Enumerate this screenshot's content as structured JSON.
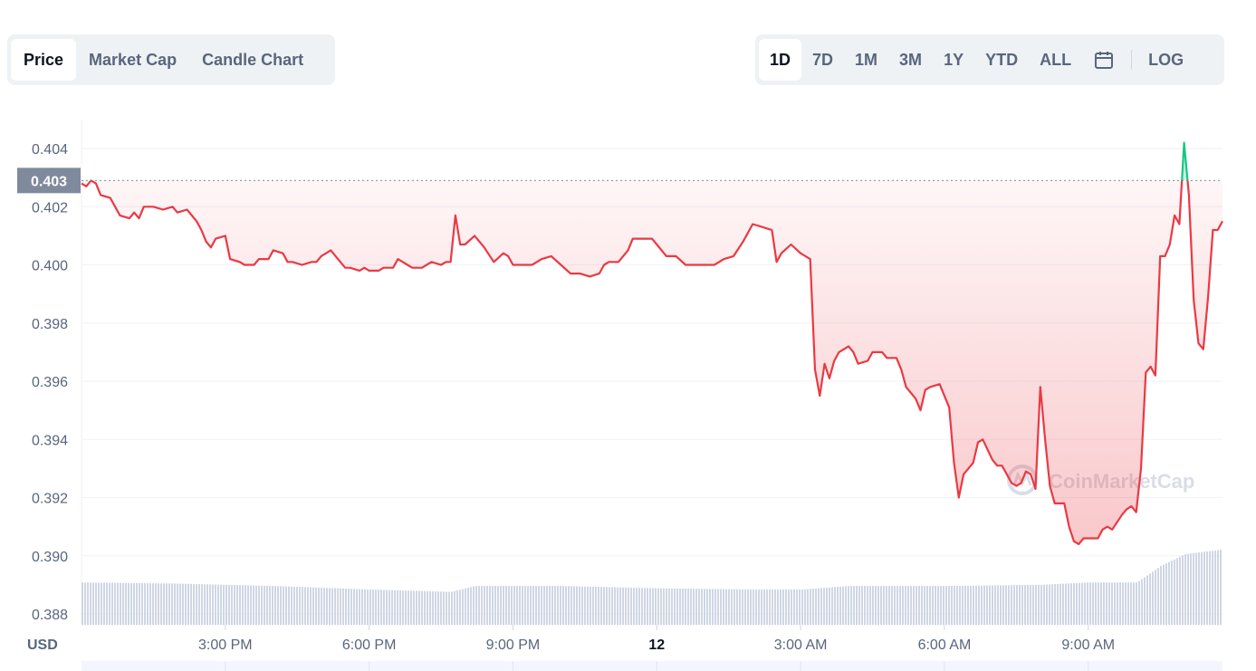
{
  "tabs": {
    "items": [
      "Price",
      "Market Cap",
      "Candle Chart"
    ],
    "active": "Price"
  },
  "ranges": {
    "items": [
      "1D",
      "7D",
      "1M",
      "3M",
      "1Y",
      "YTD",
      "ALL"
    ],
    "active": "1D",
    "calendar_icon": "calendar-icon",
    "log_label": "LOG"
  },
  "watermark": "CoinMarketCap",
  "colors": {
    "down": "#ea3943",
    "up": "#16c784",
    "volume": "#cfd6e4",
    "grid": "#eff2f5",
    "label_bg": "#808a9d"
  },
  "chart_data": {
    "type": "line",
    "unit_label": "USD",
    "current_price_label": "0.403",
    "ylim": [
      0.3875,
      0.405
    ],
    "yticks": [
      "0.404",
      "0.402",
      "0.400",
      "0.398",
      "0.396",
      "0.394",
      "0.392",
      "0.390",
      "0.388"
    ],
    "ytick_values": [
      0.404,
      0.402,
      0.4,
      0.398,
      0.396,
      0.394,
      0.392,
      0.39,
      0.388
    ],
    "x_range_hours": [
      12.0,
      35.8
    ],
    "xticks": [
      {
        "label": "3:00 PM",
        "hour": 15,
        "bold": false
      },
      {
        "label": "6:00 PM",
        "hour": 18,
        "bold": false
      },
      {
        "label": "9:00 PM",
        "hour": 21,
        "bold": false
      },
      {
        "label": "12",
        "hour": 24,
        "bold": true
      },
      {
        "label": "3:00 AM",
        "hour": 27,
        "bold": false
      },
      {
        "label": "6:00 AM",
        "hour": 30,
        "bold": false
      },
      {
        "label": "9:00 AM",
        "hour": 33,
        "bold": false
      }
    ],
    "baseline": 0.4029,
    "grid": true,
    "legend": "none",
    "series": [
      {
        "values": [
          [
            12.0,
            0.4028
          ],
          [
            12.1,
            0.4027
          ],
          [
            12.2,
            0.4029
          ],
          [
            12.3,
            0.4028
          ],
          [
            12.4,
            0.4024
          ],
          [
            12.6,
            0.4023
          ],
          [
            12.7,
            0.402
          ],
          [
            12.8,
            0.4017
          ],
          [
            13.0,
            0.4016
          ],
          [
            13.1,
            0.4018
          ],
          [
            13.2,
            0.4016
          ],
          [
            13.3,
            0.402
          ],
          [
            13.5,
            0.402
          ],
          [
            13.7,
            0.4019
          ],
          [
            13.9,
            0.402
          ],
          [
            14.0,
            0.4018
          ],
          [
            14.2,
            0.4019
          ],
          [
            14.4,
            0.4015
          ],
          [
            14.5,
            0.4012
          ],
          [
            14.6,
            0.4008
          ],
          [
            14.7,
            0.4006
          ],
          [
            14.8,
            0.4009
          ],
          [
            15.0,
            0.401
          ],
          [
            15.1,
            0.4002
          ],
          [
            15.3,
            0.4001
          ],
          [
            15.4,
            0.4
          ],
          [
            15.6,
            0.4
          ],
          [
            15.7,
            0.4002
          ],
          [
            15.9,
            0.4002
          ],
          [
            16.0,
            0.4005
          ],
          [
            16.2,
            0.4004
          ],
          [
            16.3,
            0.4001
          ],
          [
            16.4,
            0.4001
          ],
          [
            16.6,
            0.4
          ],
          [
            16.8,
            0.4001
          ],
          [
            16.9,
            0.4001
          ],
          [
            17.0,
            0.4003
          ],
          [
            17.2,
            0.4005
          ],
          [
            17.3,
            0.4003
          ],
          [
            17.5,
            0.3999
          ],
          [
            17.6,
            0.3999
          ],
          [
            17.8,
            0.3998
          ],
          [
            17.9,
            0.3999
          ],
          [
            18.0,
            0.3998
          ],
          [
            18.2,
            0.3998
          ],
          [
            18.3,
            0.3999
          ],
          [
            18.5,
            0.3999
          ],
          [
            18.6,
            0.4002
          ],
          [
            18.8,
            0.4
          ],
          [
            18.9,
            0.3999
          ],
          [
            19.1,
            0.3999
          ],
          [
            19.2,
            0.4
          ],
          [
            19.3,
            0.4001
          ],
          [
            19.5,
            0.4
          ],
          [
            19.6,
            0.4001
          ],
          [
            19.7,
            0.4001
          ],
          [
            19.8,
            0.4017
          ],
          [
            19.9,
            0.4007
          ],
          [
            20.0,
            0.4007
          ],
          [
            20.2,
            0.401
          ],
          [
            20.4,
            0.4006
          ],
          [
            20.6,
            0.4001
          ],
          [
            20.8,
            0.4004
          ],
          [
            20.9,
            0.4003
          ],
          [
            21.0,
            0.4
          ],
          [
            21.2,
            0.4
          ],
          [
            21.4,
            0.4
          ],
          [
            21.6,
            0.4002
          ],
          [
            21.8,
            0.4003
          ],
          [
            22.0,
            0.4
          ],
          [
            22.2,
            0.3997
          ],
          [
            22.4,
            0.3997
          ],
          [
            22.6,
            0.3996
          ],
          [
            22.8,
            0.3997
          ],
          [
            22.9,
            0.4
          ],
          [
            23.0,
            0.4001
          ],
          [
            23.2,
            0.4001
          ],
          [
            23.4,
            0.4005
          ],
          [
            23.5,
            0.4009
          ],
          [
            23.7,
            0.4009
          ],
          [
            23.9,
            0.4009
          ],
          [
            24.0,
            0.4007
          ],
          [
            24.2,
            0.4003
          ],
          [
            24.4,
            0.4003
          ],
          [
            24.6,
            0.4
          ],
          [
            24.8,
            0.4
          ],
          [
            25.0,
            0.4
          ],
          [
            25.2,
            0.4
          ],
          [
            25.4,
            0.4002
          ],
          [
            25.6,
            0.4003
          ],
          [
            25.8,
            0.4008
          ],
          [
            26.0,
            0.4014
          ],
          [
            26.2,
            0.4013
          ],
          [
            26.4,
            0.4012
          ],
          [
            26.5,
            0.4001
          ],
          [
            26.6,
            0.4004
          ],
          [
            26.8,
            0.4007
          ],
          [
            27.0,
            0.4004
          ],
          [
            27.2,
            0.4002
          ],
          [
            27.3,
            0.3964
          ],
          [
            27.4,
            0.3955
          ],
          [
            27.5,
            0.3966
          ],
          [
            27.6,
            0.3961
          ],
          [
            27.7,
            0.3967
          ],
          [
            27.8,
            0.397
          ],
          [
            28.0,
            0.3972
          ],
          [
            28.1,
            0.397
          ],
          [
            28.2,
            0.3966
          ],
          [
            28.4,
            0.3967
          ],
          [
            28.5,
            0.397
          ],
          [
            28.7,
            0.397
          ],
          [
            28.8,
            0.3968
          ],
          [
            29.0,
            0.3968
          ],
          [
            29.1,
            0.3964
          ],
          [
            29.2,
            0.3958
          ],
          [
            29.4,
            0.3954
          ],
          [
            29.5,
            0.395
          ],
          [
            29.6,
            0.3957
          ],
          [
            29.7,
            0.3958
          ],
          [
            29.9,
            0.3959
          ],
          [
            30.1,
            0.3951
          ],
          [
            30.2,
            0.3932
          ],
          [
            30.3,
            0.392
          ],
          [
            30.4,
            0.3928
          ],
          [
            30.5,
            0.393
          ],
          [
            30.6,
            0.3932
          ],
          [
            30.7,
            0.3939
          ],
          [
            30.8,
            0.394
          ],
          [
            31.0,
            0.3933
          ],
          [
            31.1,
            0.3931
          ],
          [
            31.2,
            0.3931
          ],
          [
            31.3,
            0.3928
          ],
          [
            31.4,
            0.3925
          ],
          [
            31.5,
            0.3924
          ],
          [
            31.6,
            0.3925
          ],
          [
            31.7,
            0.3929
          ],
          [
            31.8,
            0.3928
          ],
          [
            31.9,
            0.3923
          ],
          [
            32.0,
            0.3958
          ],
          [
            32.1,
            0.394
          ],
          [
            32.2,
            0.3924
          ],
          [
            32.3,
            0.3918
          ],
          [
            32.4,
            0.3918
          ],
          [
            32.5,
            0.3918
          ],
          [
            32.6,
            0.391
          ],
          [
            32.7,
            0.3905
          ],
          [
            32.8,
            0.3904
          ],
          [
            32.9,
            0.3906
          ],
          [
            33.0,
            0.3906
          ],
          [
            33.1,
            0.3906
          ],
          [
            33.2,
            0.3906
          ],
          [
            33.3,
            0.3909
          ],
          [
            33.4,
            0.391
          ],
          [
            33.5,
            0.3909
          ],
          [
            33.7,
            0.3914
          ],
          [
            33.8,
            0.3916
          ],
          [
            33.9,
            0.3917
          ],
          [
            34.0,
            0.3915
          ],
          [
            34.1,
            0.393
          ],
          [
            34.2,
            0.3963
          ],
          [
            34.3,
            0.3965
          ],
          [
            34.4,
            0.3962
          ],
          [
            34.5,
            0.4003
          ],
          [
            34.6,
            0.4003
          ],
          [
            34.7,
            0.4007
          ],
          [
            34.8,
            0.4017
          ],
          [
            34.9,
            0.4014
          ],
          [
            35.0,
            0.4042
          ],
          [
            35.1,
            0.4024
          ],
          [
            35.2,
            0.3988
          ],
          [
            35.3,
            0.3973
          ],
          [
            35.4,
            0.3971
          ],
          [
            35.5,
            0.3989
          ],
          [
            35.6,
            0.4012
          ],
          [
            35.7,
            0.4012
          ],
          [
            35.8,
            0.4015
          ]
        ]
      }
    ],
    "volume": {
      "description_hidden": true,
      "relative_levels": [
        [
          12.0,
          0.36
        ],
        [
          14.0,
          0.35
        ],
        [
          16.0,
          0.33
        ],
        [
          18.0,
          0.3
        ],
        [
          19.7,
          0.28
        ],
        [
          20.2,
          0.33
        ],
        [
          22.0,
          0.33
        ],
        [
          24.0,
          0.31
        ],
        [
          26.0,
          0.3
        ],
        [
          27.0,
          0.3
        ],
        [
          28.0,
          0.33
        ],
        [
          30.0,
          0.33
        ],
        [
          32.0,
          0.34
        ],
        [
          33.0,
          0.36
        ],
        [
          34.0,
          0.36
        ],
        [
          34.5,
          0.5
        ],
        [
          35.0,
          0.6
        ],
        [
          35.8,
          0.64
        ]
      ]
    }
  }
}
